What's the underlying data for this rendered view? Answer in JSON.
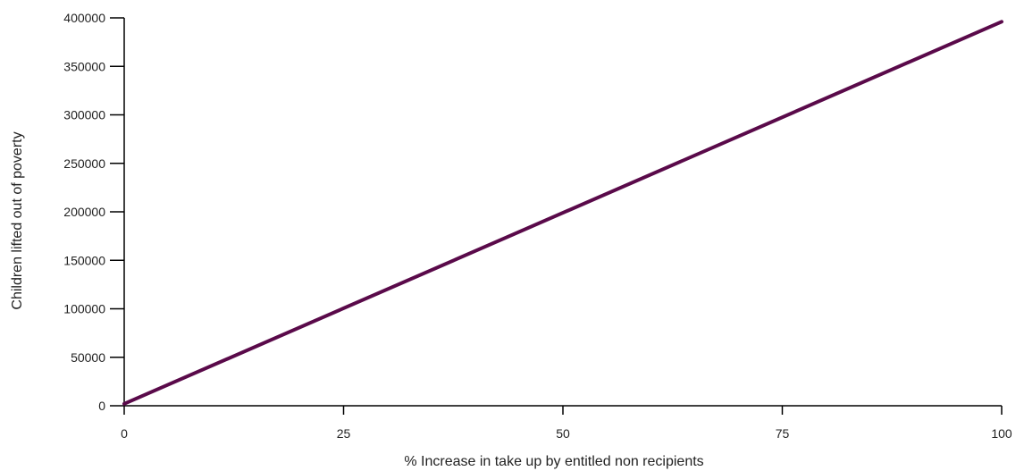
{
  "chart_data": {
    "type": "line",
    "title": "",
    "xlabel": "% Increase in take up by entitled non recipients",
    "ylabel": "Children lifted out of poverty",
    "xlim": [
      0,
      100
    ],
    "ylim": [
      0,
      400000
    ],
    "xticks": [
      "0",
      "25",
      "50",
      "75",
      "100"
    ],
    "yticks": [
      "0",
      "50000",
      "100000",
      "150000",
      "200000",
      "250000",
      "300000",
      "350000",
      "400000"
    ],
    "grid": false,
    "series": [
      {
        "color": "#5a0a4a",
        "x": [
          0,
          100
        ],
        "y": [
          2000,
          396000
        ]
      }
    ]
  }
}
